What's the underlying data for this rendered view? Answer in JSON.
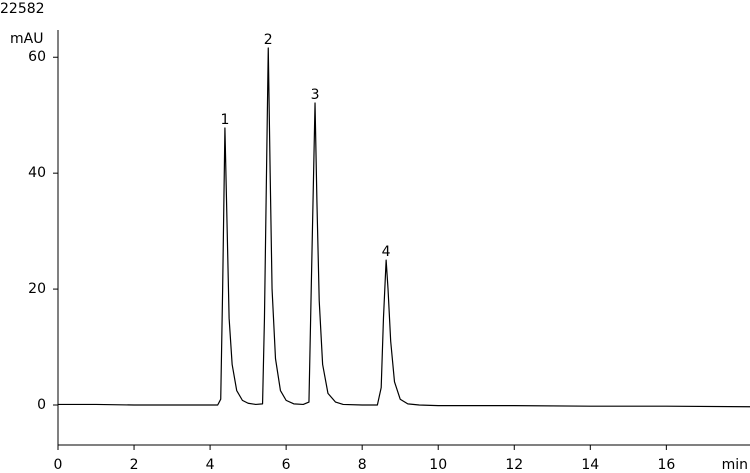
{
  "chart_data": {
    "type": "line",
    "title": "22582",
    "y_label": "mAU",
    "x_label": "min",
    "color": "#000000",
    "x": [
      0,
      1,
      2,
      3,
      4,
      4.2,
      4.28,
      4.33,
      4.39,
      4.45,
      4.5,
      4.58,
      4.7,
      4.85,
      5.0,
      5.2,
      5.38,
      5.43,
      5.53,
      5.58,
      5.63,
      5.72,
      5.85,
      6.0,
      6.2,
      6.45,
      6.6,
      6.66,
      6.76,
      6.81,
      6.87,
      6.96,
      7.1,
      7.3,
      7.5,
      8.0,
      8.4,
      8.5,
      8.56,
      8.63,
      8.68,
      8.75,
      8.85,
      9.0,
      9.2,
      9.5,
      10,
      12,
      14,
      16,
      18.2
    ],
    "values": [
      0.1,
      0.1,
      0,
      0,
      0,
      0,
      1,
      20,
      47.8,
      30,
      15,
      7,
      2.5,
      0.8,
      0.3,
      0.1,
      0.2,
      15,
      61.6,
      40,
      20,
      8,
      2.5,
      0.8,
      0.2,
      0.1,
      0.5,
      20,
      52.1,
      35,
      18,
      7,
      2,
      0.5,
      0.1,
      0,
      0,
      3,
      15,
      25.0,
      20,
      11,
      4,
      1,
      0.2,
      0,
      -0.1,
      -0.1,
      -0.2,
      -0.2,
      -0.3
    ],
    "peaks": [
      {
        "label": "1",
        "x": 4.39,
        "y": 47.8
      },
      {
        "label": "2",
        "x": 5.53,
        "y": 61.6
      },
      {
        "label": "3",
        "x": 6.76,
        "y": 52.1
      },
      {
        "label": "4",
        "x": 8.63,
        "y": 25.0
      }
    ],
    "xlim": [
      0,
      18.2
    ],
    "ylim": [
      -6.9,
      64.7
    ],
    "xticks": [
      0,
      2,
      4,
      6,
      8,
      10,
      12,
      14,
      16
    ],
    "yticks": [
      0,
      20,
      40,
      60
    ]
  }
}
